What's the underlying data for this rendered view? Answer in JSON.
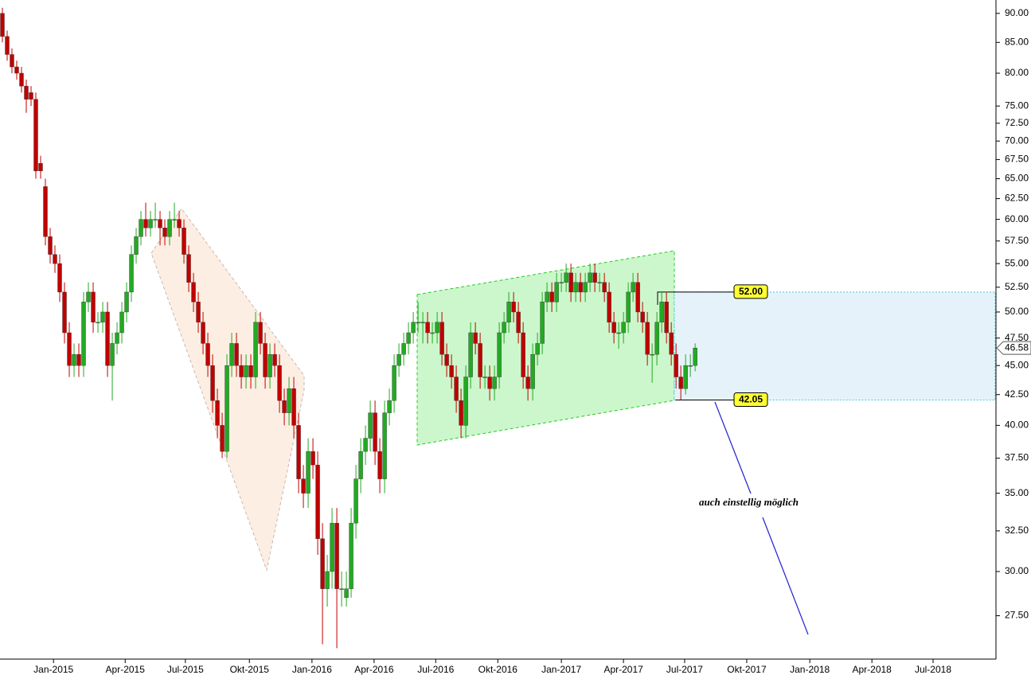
{
  "chart_data": {
    "type": "candlestick",
    "log_scale": true,
    "up_color": "#22aa22",
    "down_color": "#c00000",
    "ylim": [
      25.25,
      92.4
    ],
    "xlim": [
      -0.5,
      207.8
    ],
    "yticks": [
      {
        "value": 27.5,
        "label": "27.50"
      },
      {
        "value": 30,
        "label": "30.00"
      },
      {
        "value": 32.5,
        "label": "32.50"
      },
      {
        "value": 35,
        "label": "35.00"
      },
      {
        "value": 37.5,
        "label": "37.50"
      },
      {
        "value": 40,
        "label": "40.00"
      },
      {
        "value": 42.5,
        "label": "42.50"
      },
      {
        "value": 45,
        "label": "45.00"
      },
      {
        "value": 47.5,
        "label": "47.50"
      },
      {
        "value": 50,
        "label": "50.00"
      },
      {
        "value": 52.5,
        "label": "52.50"
      },
      {
        "value": 55,
        "label": "55.00"
      },
      {
        "value": 57.5,
        "label": "57.50"
      },
      {
        "value": 60,
        "label": "60.00"
      },
      {
        "value": 62.5,
        "label": "62.50"
      },
      {
        "value": 65,
        "label": "65.00"
      },
      {
        "value": 67.5,
        "label": "67.50"
      },
      {
        "value": 70,
        "label": "70.00"
      },
      {
        "value": 72.5,
        "label": "72.50"
      },
      {
        "value": 75,
        "label": "75.00"
      },
      {
        "value": 80,
        "label": "80.00"
      },
      {
        "value": 85,
        "label": "85.00"
      },
      {
        "value": 90,
        "label": "90.00"
      }
    ],
    "xticks": [
      {
        "value": 10.7,
        "label": "Jan-2015"
      },
      {
        "value": 25.7,
        "label": "Apr-2015"
      },
      {
        "value": 38.3,
        "label": "Jul-2015"
      },
      {
        "value": 51.7,
        "label": "Okt-2015"
      },
      {
        "value": 64.8,
        "label": "Jan-2016"
      },
      {
        "value": 77.8,
        "label": "Apr-2016"
      },
      {
        "value": 90.7,
        "label": "Jul-2016"
      },
      {
        "value": 103.7,
        "label": "Okt-2016"
      },
      {
        "value": 117,
        "label": "Jan-2017"
      },
      {
        "value": 130,
        "label": "Apr-2017"
      },
      {
        "value": 142.8,
        "label": "Jul-2017"
      },
      {
        "value": 155.8,
        "label": "Okt-2017"
      },
      {
        "value": 169,
        "label": "Jan-2018"
      },
      {
        "value": 182,
        "label": "Apr-2018"
      },
      {
        "value": 194.8,
        "label": "Jul-2018"
      }
    ],
    "levels": [
      {
        "value": 52,
        "label": "52.00"
      },
      {
        "value": 42.05,
        "label": "42.05"
      }
    ],
    "last_price": {
      "value": 46.58,
      "label": "46.58"
    },
    "annotation": "auch einstellig möglich",
    "x": [
      0,
      1,
      2,
      3,
      4,
      5,
      6,
      7,
      8,
      9,
      10,
      11,
      12,
      13,
      14,
      15,
      16,
      17,
      18,
      19,
      20,
      21,
      22,
      23,
      24,
      25,
      26,
      27,
      28,
      29,
      30,
      31,
      32,
      33,
      34,
      35,
      36,
      37,
      38,
      39,
      40,
      41,
      42,
      43,
      44,
      45,
      46,
      47,
      48,
      49,
      50,
      51,
      52,
      53,
      54,
      55,
      56,
      57,
      58,
      59,
      60,
      61,
      62,
      63,
      64,
      65,
      66,
      67,
      68,
      69,
      70,
      71,
      72,
      73,
      74,
      75,
      76,
      77,
      78,
      79,
      80,
      81,
      82,
      83,
      84,
      85,
      86,
      87,
      88,
      89,
      90,
      91,
      92,
      93,
      94,
      95,
      96,
      97,
      98,
      99,
      100,
      101,
      102,
      103,
      104,
      105,
      106,
      107,
      108,
      109,
      110,
      111,
      112,
      113,
      114,
      115,
      116,
      117,
      118,
      119,
      120,
      121,
      122,
      123,
      124,
      125,
      126,
      127,
      128,
      129,
      130,
      131,
      132,
      133,
      134,
      135,
      136,
      137,
      138,
      139,
      140,
      141,
      142,
      143,
      144,
      145
    ],
    "ohlc": [
      [
        90,
        91,
        85,
        86
      ],
      [
        86,
        87,
        82,
        83
      ],
      [
        83,
        84,
        80,
        81
      ],
      [
        81,
        82,
        79,
        80
      ],
      [
        80,
        81,
        77,
        78
      ],
      [
        78,
        79,
        74,
        76
      ],
      [
        77,
        78,
        75,
        76
      ],
      [
        76,
        77,
        65,
        66
      ],
      [
        67,
        68,
        65,
        66
      ],
      [
        64,
        65,
        57,
        58
      ],
      [
        58,
        59,
        55,
        56
      ],
      [
        56,
        57,
        54,
        55
      ],
      [
        55,
        56,
        51,
        52
      ],
      [
        52,
        53,
        47,
        48
      ],
      [
        48,
        49,
        44,
        45
      ],
      [
        45,
        47,
        44,
        46
      ],
      [
        46,
        47,
        44,
        45
      ],
      [
        45,
        52,
        44,
        51
      ],
      [
        51,
        53,
        50,
        52
      ],
      [
        52,
        53,
        48,
        49
      ],
      [
        49,
        50,
        48,
        49
      ],
      [
        49,
        51,
        48,
        50
      ],
      [
        50,
        51,
        44,
        45
      ],
      [
        45,
        48,
        42,
        47
      ],
      [
        47,
        49,
        46,
        48
      ],
      [
        48,
        51,
        47,
        50
      ],
      [
        50,
        53,
        49,
        52
      ],
      [
        52,
        57,
        51,
        56
      ],
      [
        56,
        59,
        55,
        58
      ],
      [
        58,
        61,
        57,
        60
      ],
      [
        60,
        62,
        58,
        59
      ],
      [
        59,
        61,
        58,
        60
      ],
      [
        60,
        62,
        59,
        60
      ],
      [
        60,
        61,
        57,
        59
      ],
      [
        59,
        60,
        57,
        58
      ],
      [
        58,
        61,
        57,
        60
      ],
      [
        60,
        62,
        59,
        60
      ],
      [
        60,
        61,
        58,
        59
      ],
      [
        59,
        60,
        55,
        56
      ],
      [
        56,
        57,
        52,
        53
      ],
      [
        53,
        54,
        50,
        51
      ],
      [
        51,
        52,
        48,
        49
      ],
      [
        49,
        50,
        46,
        47
      ],
      [
        47,
        48,
        44,
        45
      ],
      [
        45,
        46,
        41,
        42
      ],
      [
        42,
        43,
        39,
        40
      ],
      [
        40,
        41,
        37.5,
        38
      ],
      [
        38,
        46,
        37.5,
        45
      ],
      [
        45,
        48,
        44,
        47
      ],
      [
        47,
        48,
        44,
        45
      ],
      [
        45,
        46,
        43,
        44
      ],
      [
        44,
        46,
        43,
        45
      ],
      [
        45,
        46,
        43,
        44
      ],
      [
        44,
        50,
        43,
        49
      ],
      [
        49,
        50,
        46,
        47
      ],
      [
        47,
        48,
        43,
        44
      ],
      [
        44,
        47,
        43,
        46
      ],
      [
        46,
        47,
        44,
        45
      ],
      [
        45,
        46,
        41,
        42
      ],
      [
        42,
        43,
        40,
        41
      ],
      [
        41,
        44,
        40,
        43
      ],
      [
        43,
        44,
        39,
        40
      ],
      [
        40,
        41,
        35,
        36
      ],
      [
        36,
        37,
        34,
        35
      ],
      [
        35,
        39,
        34,
        38
      ],
      [
        38,
        39,
        36,
        37
      ],
      [
        37,
        38,
        31,
        32
      ],
      [
        32,
        33,
        26,
        29
      ],
      [
        29,
        31,
        28,
        30
      ],
      [
        30,
        34,
        29,
        33
      ],
      [
        33,
        34,
        25.8,
        29
      ],
      [
        29,
        30,
        28,
        29
      ],
      [
        28.5,
        30,
        28,
        29
      ],
      [
        29,
        34,
        28.5,
        33
      ],
      [
        33,
        37,
        32,
        36
      ],
      [
        36,
        39,
        35,
        38
      ],
      [
        38,
        40,
        37,
        39
      ],
      [
        39,
        42,
        38,
        41
      ],
      [
        41,
        42,
        37,
        38
      ],
      [
        38,
        39,
        35,
        36
      ],
      [
        36,
        42,
        35,
        41
      ],
      [
        41,
        43,
        40,
        42
      ],
      [
        42,
        46,
        41,
        45
      ],
      [
        45,
        47,
        44,
        46
      ],
      [
        46,
        48,
        45,
        47
      ],
      [
        47,
        49,
        46,
        48
      ],
      [
        48,
        50,
        47,
        49
      ],
      [
        49,
        51,
        48,
        49
      ],
      [
        49,
        50,
        47,
        49
      ],
      [
        49,
        50,
        47,
        48
      ],
      [
        48,
        49,
        47,
        48
      ],
      [
        48,
        50,
        47,
        49
      ],
      [
        49,
        50,
        45,
        46
      ],
      [
        46,
        47,
        44,
        45
      ],
      [
        45,
        46,
        43,
        44
      ],
      [
        44,
        45,
        41,
        42
      ],
      [
        42,
        43,
        39,
        40
      ],
      [
        40,
        45,
        39,
        44
      ],
      [
        44,
        49,
        43,
        48
      ],
      [
        48,
        49,
        46,
        47
      ],
      [
        47,
        48,
        43,
        44
      ],
      [
        44,
        45,
        43,
        44
      ],
      [
        44,
        45,
        42,
        43
      ],
      [
        43,
        45,
        42,
        44
      ],
      [
        44,
        49,
        43,
        48
      ],
      [
        48,
        50,
        47,
        49
      ],
      [
        49,
        52,
        48,
        51
      ],
      [
        51,
        52,
        49,
        50
      ],
      [
        50,
        51,
        47,
        48
      ],
      [
        48,
        49,
        43,
        44
      ],
      [
        44,
        45,
        42,
        43
      ],
      [
        43,
        47,
        42,
        46
      ],
      [
        46,
        48,
        45,
        47
      ],
      [
        47,
        52,
        46,
        51
      ],
      [
        51,
        53,
        50,
        52
      ],
      [
        52,
        53,
        50,
        51
      ],
      [
        51,
        54,
        50,
        53
      ],
      [
        53,
        54,
        52,
        53
      ],
      [
        53,
        55,
        52,
        54
      ],
      [
        54,
        55,
        51,
        52
      ],
      [
        52,
        54,
        51,
        53
      ],
      [
        53,
        54,
        51,
        52
      ],
      [
        52,
        54,
        51,
        53
      ],
      [
        53,
        55,
        52,
        54
      ],
      [
        54,
        55,
        52,
        53
      ],
      [
        53,
        54,
        52,
        53
      ],
      [
        53,
        54,
        51,
        52
      ],
      [
        52,
        53,
        48,
        49
      ],
      [
        49,
        50,
        47,
        48
      ],
      [
        48,
        49,
        46.5,
        48
      ],
      [
        48,
        50,
        47,
        49
      ],
      [
        49,
        53,
        48,
        52
      ],
      [
        52,
        54,
        51,
        53
      ],
      [
        53,
        54,
        49,
        50
      ],
      [
        50,
        51,
        48,
        49
      ],
      [
        49,
        50,
        45,
        46
      ],
      [
        46,
        47,
        43.5,
        46
      ],
      [
        46,
        50,
        45,
        49
      ],
      [
        49,
        52,
        48,
        51
      ],
      [
        51,
        52,
        47,
        48
      ],
      [
        48,
        49,
        45,
        46
      ],
      [
        46,
        47,
        43,
        44
      ],
      [
        44,
        45,
        42.05,
        43
      ],
      [
        43,
        46,
        42.5,
        45
      ],
      [
        45,
        46,
        44,
        45
      ],
      [
        45,
        47,
        44.5,
        46.58
      ]
    ]
  }
}
